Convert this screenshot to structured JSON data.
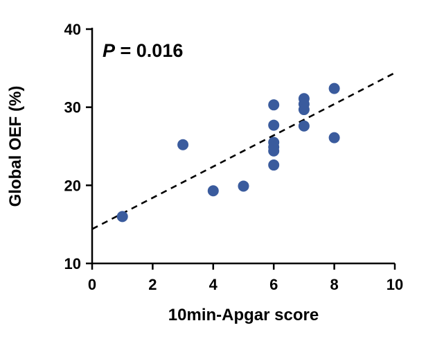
{
  "figure": {
    "annotation": {
      "italic": "P",
      "rest": " = 0.016"
    }
  },
  "chart_data": {
    "type": "scatter",
    "title": "",
    "xlabel": "10min-Apgar score",
    "ylabel": "Global OEF (%)",
    "xlim": [
      0,
      10
    ],
    "ylim": [
      10,
      40
    ],
    "xticks": [
      0,
      2,
      4,
      6,
      8,
      10
    ],
    "yticks": [
      10,
      20,
      30,
      40
    ],
    "grid": false,
    "legend": "none",
    "annotation_text": "P = 0.016",
    "point_color": "#3A5B9D",
    "trendline_color": "#000000",
    "points": [
      [
        1,
        16.0
      ],
      [
        3,
        25.2
      ],
      [
        4,
        19.3
      ],
      [
        5,
        19.9
      ],
      [
        6,
        30.3
      ],
      [
        6,
        27.7
      ],
      [
        6,
        25.5
      ],
      [
        6,
        24.9
      ],
      [
        6,
        24.4
      ],
      [
        6,
        22.6
      ],
      [
        7,
        31.1
      ],
      [
        7,
        30.4
      ],
      [
        7,
        29.7
      ],
      [
        7,
        27.6
      ],
      [
        8,
        32.4
      ],
      [
        8,
        26.1
      ]
    ],
    "trendline": {
      "style": "dashed",
      "x_start": 0,
      "y_start": 14.4,
      "x_end": 10,
      "y_end": 34.4
    }
  }
}
